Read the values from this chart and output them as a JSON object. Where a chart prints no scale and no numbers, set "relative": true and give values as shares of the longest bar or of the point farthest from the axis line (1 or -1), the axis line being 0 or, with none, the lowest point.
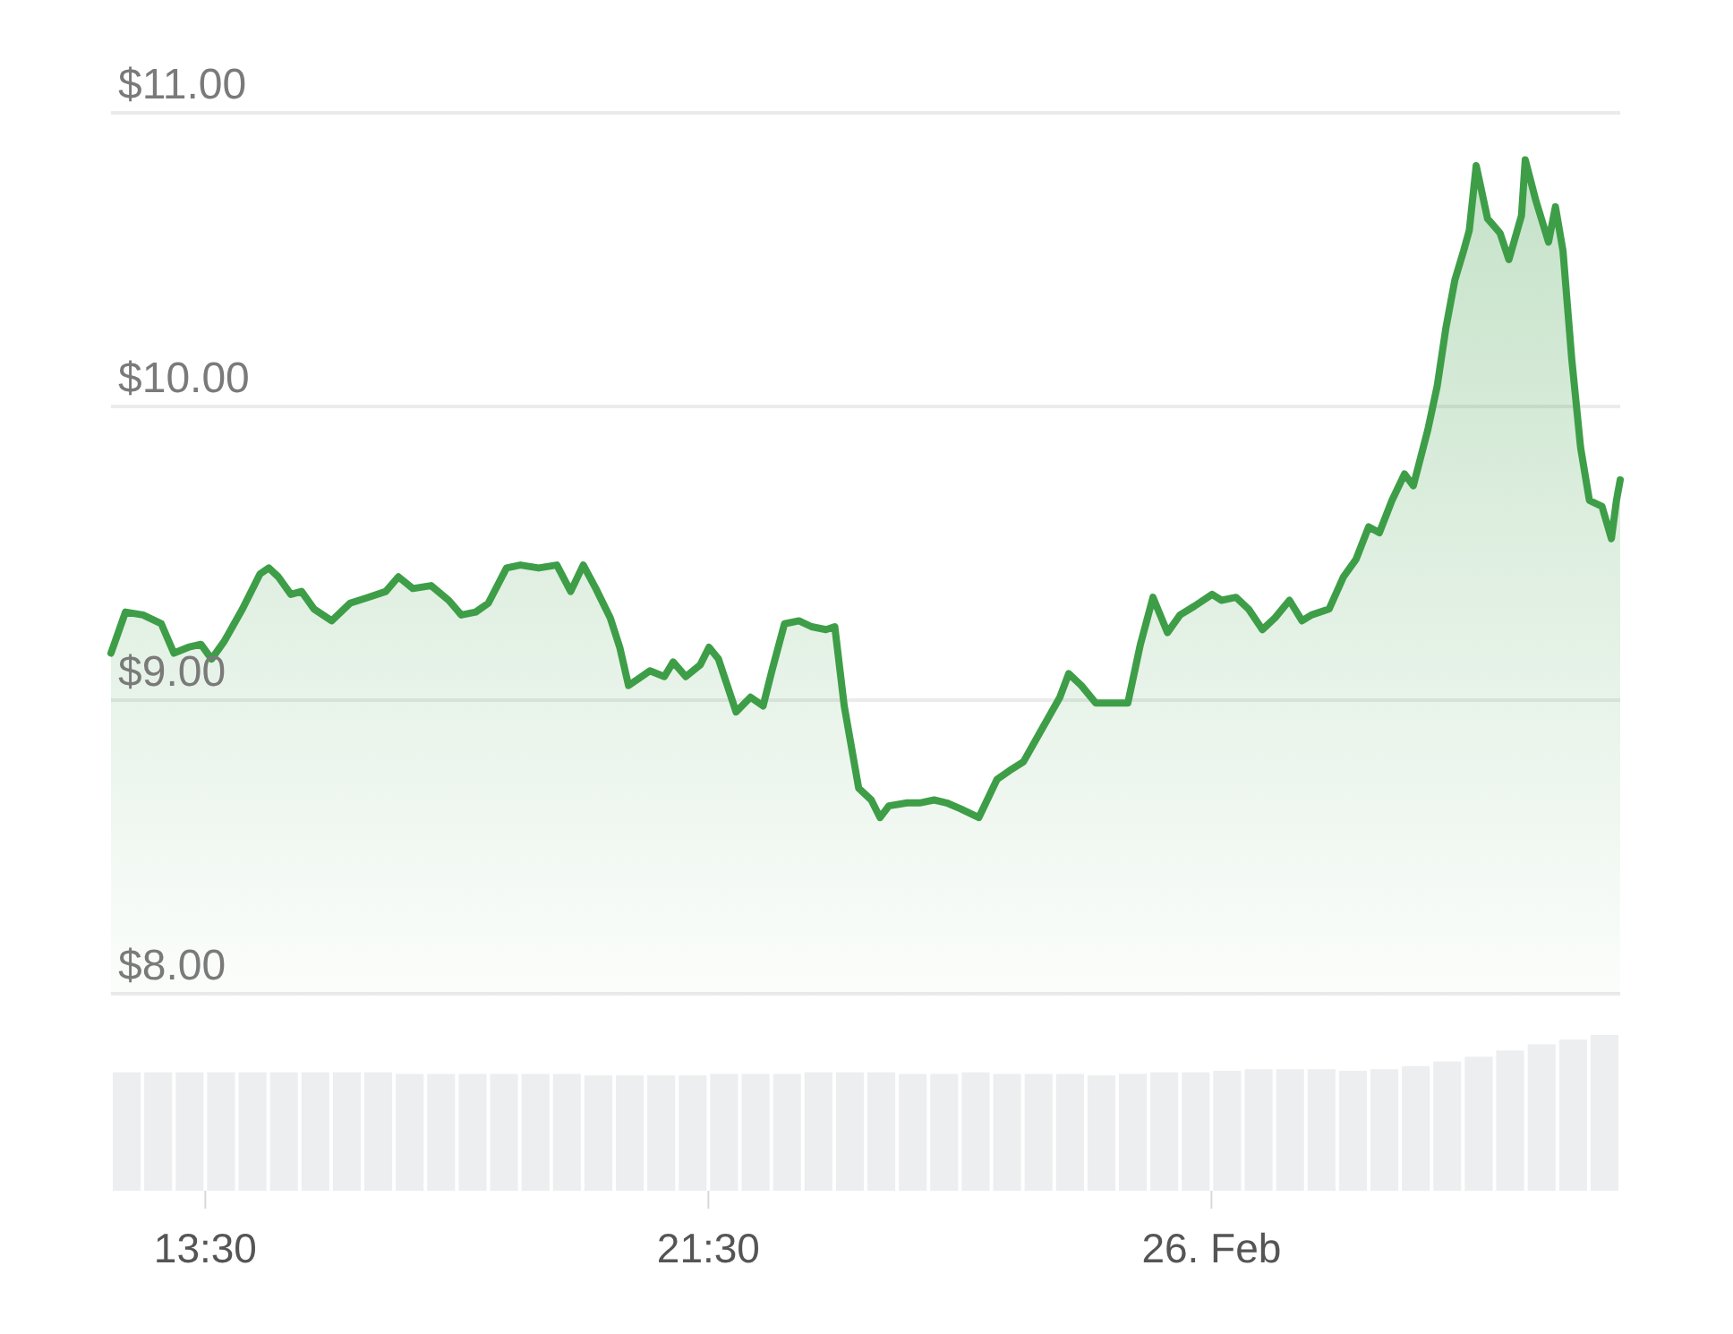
{
  "chart_data": [
    {
      "type": "area",
      "xlim": [
        12,
        36
      ],
      "ylim": [
        8,
        11
      ],
      "grid": "y",
      "tick_labels": "y",
      "yticks": [
        {
          "value": 8,
          "label": "$8.00"
        },
        {
          "value": 9,
          "label": "$9.00"
        },
        {
          "value": 10,
          "label": "$10.00"
        },
        {
          "value": 11,
          "label": "$11.00"
        }
      ],
      "series": [
        {
          "color": "#3e9e48",
          "x": [
            12.0,
            12.23,
            12.51,
            12.8,
            13.0,
            13.23,
            13.43,
            13.6,
            13.8,
            14.09,
            14.37,
            14.51,
            14.66,
            14.86,
            15.03,
            15.23,
            15.51,
            15.8,
            16.09,
            16.37,
            16.57,
            16.8,
            17.09,
            17.37,
            17.57,
            17.8,
            18.0,
            18.29,
            18.51,
            18.8,
            19.09,
            19.31,
            19.51,
            19.71,
            19.94,
            20.09,
            20.23,
            20.37,
            20.57,
            20.8,
            20.94,
            21.14,
            21.37,
            21.51,
            21.66,
            21.8,
            21.94,
            22.17,
            22.37,
            22.51,
            22.71,
            22.94,
            23.14,
            23.37,
            23.51,
            23.66,
            23.89,
            24.09,
            24.23,
            24.37,
            24.66,
            24.86,
            25.09,
            25.29,
            25.51,
            25.8,
            26.09,
            26.29,
            26.51,
            26.8,
            27.09,
            27.23,
            27.43,
            27.66,
            27.94,
            28.17,
            28.37,
            28.57,
            28.8,
            29.0,
            29.23,
            29.51,
            29.66,
            29.89,
            30.09,
            30.31,
            30.51,
            30.74,
            30.94,
            31.09,
            31.37,
            31.6,
            31.8,
            32.0,
            32.17,
            32.37,
            32.57,
            32.71,
            32.94,
            33.09,
            33.23,
            33.37,
            33.51,
            33.6,
            33.71,
            33.89,
            34.09,
            34.23,
            34.43,
            34.49,
            34.66,
            34.86,
            34.97,
            35.09,
            35.23,
            35.37,
            35.51,
            35.71,
            35.86,
            35.94,
            36.0
          ],
          "values": [
            9.16,
            9.3,
            9.29,
            9.26,
            9.16,
            9.18,
            9.19,
            9.14,
            9.2,
            9.31,
            9.43,
            9.45,
            9.42,
            9.36,
            9.37,
            9.31,
            9.27,
            9.33,
            9.35,
            9.37,
            9.42,
            9.38,
            9.39,
            9.34,
            9.29,
            9.3,
            9.33,
            9.45,
            9.46,
            9.45,
            9.46,
            9.37,
            9.46,
            9.38,
            9.28,
            9.18,
            9.05,
            9.07,
            9.1,
            9.08,
            9.13,
            9.08,
            9.12,
            9.18,
            9.14,
            9.05,
            8.96,
            9.01,
            8.98,
            9.1,
            9.26,
            9.27,
            9.25,
            9.24,
            9.25,
            8.98,
            8.7,
            8.66,
            8.6,
            8.64,
            8.65,
            8.65,
            8.66,
            8.65,
            8.63,
            8.6,
            8.73,
            8.76,
            8.79,
            8.9,
            9.01,
            9.09,
            9.05,
            8.99,
            8.99,
            8.99,
            9.19,
            9.35,
            9.23,
            9.29,
            9.32,
            9.36,
            9.34,
            9.35,
            9.31,
            9.24,
            9.28,
            9.34,
            9.27,
            9.29,
            9.31,
            9.42,
            9.48,
            9.59,
            9.57,
            9.68,
            9.77,
            9.73,
            9.92,
            10.07,
            10.27,
            10.43,
            10.53,
            10.6,
            10.82,
            10.64,
            10.59,
            10.5,
            10.65,
            10.84,
            10.7,
            10.56,
            10.68,
            10.53,
            10.16,
            9.86,
            9.68,
            9.66,
            9.55,
            9.68,
            9.75
          ]
        }
      ]
    },
    {
      "type": "bar",
      "relative": true,
      "color": "#eceef0",
      "xlim": [
        12,
        36
      ],
      "xticks": [
        {
          "value": 13.5,
          "label": "13:30"
        },
        {
          "value": 21.5,
          "label": "21:30"
        },
        {
          "value": 29.5,
          "label": "26. Feb"
        }
      ],
      "x": [
        12.25,
        12.75,
        13.25,
        13.75,
        14.25,
        14.75,
        15.25,
        15.75,
        16.25,
        16.75,
        17.25,
        17.75,
        18.25,
        18.75,
        19.25,
        19.75,
        20.25,
        20.75,
        21.25,
        21.75,
        22.25,
        22.75,
        23.25,
        23.75,
        24.25,
        24.75,
        25.25,
        25.75,
        26.25,
        26.75,
        27.25,
        27.75,
        28.25,
        28.75,
        29.25,
        29.75,
        30.25,
        30.75,
        31.25,
        31.75,
        32.25,
        32.75,
        33.25,
        33.75,
        34.25,
        34.75,
        35.25,
        35.75
      ],
      "values": [
        0.76,
        0.76,
        0.76,
        0.76,
        0.76,
        0.76,
        0.76,
        0.76,
        0.76,
        0.75,
        0.75,
        0.75,
        0.75,
        0.75,
        0.75,
        0.74,
        0.74,
        0.74,
        0.74,
        0.75,
        0.75,
        0.75,
        0.76,
        0.76,
        0.76,
        0.75,
        0.75,
        0.76,
        0.75,
        0.75,
        0.75,
        0.74,
        0.75,
        0.76,
        0.76,
        0.77,
        0.78,
        0.78,
        0.78,
        0.77,
        0.78,
        0.8,
        0.83,
        0.86,
        0.9,
        0.94,
        0.97,
        1
      ]
    }
  ]
}
